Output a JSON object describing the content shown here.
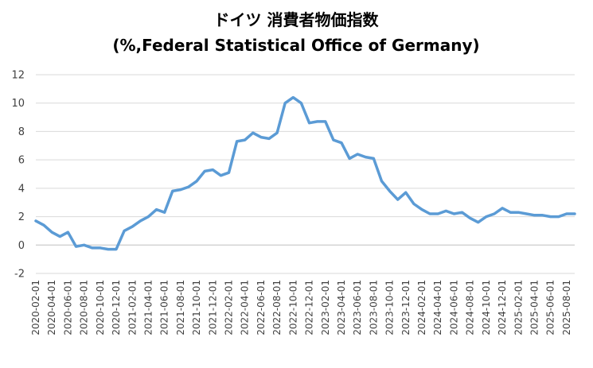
{
  "chart_data": {
    "type": "line",
    "title": "ドイツ 消費者物価指数",
    "subtitle": "(%,Federal Statistical Office of Germany)",
    "xlabel": "",
    "ylabel": "",
    "ylim": [
      -2,
      12
    ],
    "yticks": [
      -2,
      0,
      2,
      4,
      6,
      8,
      10,
      12
    ],
    "grid": "horizontal",
    "legend": "none",
    "color": "#5b9bd5",
    "x": [
      "2020-02-01",
      "2020-03-01",
      "2020-04-01",
      "2020-05-01",
      "2020-06-01",
      "2020-07-01",
      "2020-08-01",
      "2020-09-01",
      "2020-10-01",
      "2020-11-01",
      "2020-12-01",
      "2021-01-01",
      "2021-02-01",
      "2021-03-01",
      "2021-04-01",
      "2021-05-01",
      "2021-06-01",
      "2021-07-01",
      "2021-08-01",
      "2021-09-01",
      "2021-10-01",
      "2021-11-01",
      "2021-12-01",
      "2022-01-01",
      "2022-02-01",
      "2022-03-01",
      "2022-04-01",
      "2022-05-01",
      "2022-06-01",
      "2022-07-01",
      "2022-08-01",
      "2022-09-01",
      "2022-10-01",
      "2022-11-01",
      "2022-12-01",
      "2023-01-01",
      "2023-02-01",
      "2023-03-01",
      "2023-04-01",
      "2023-05-01",
      "2023-06-01",
      "2023-07-01",
      "2023-08-01",
      "2023-09-01",
      "2023-10-01",
      "2023-11-01",
      "2023-12-01",
      "2024-01-01",
      "2024-02-01",
      "2024-03-01",
      "2024-04-01",
      "2024-05-01",
      "2024-06-01",
      "2024-07-01",
      "2024-08-01",
      "2024-09-01",
      "2024-10-01",
      "2024-11-01",
      "2024-12-01",
      "2025-01-01",
      "2025-02-01",
      "2025-03-01",
      "2025-04-01",
      "2025-05-01",
      "2025-06-01",
      "2025-07-01",
      "2025-08-01",
      "2025-09-01"
    ],
    "xtick_labels": [
      "2020-02-01",
      "2020-04-01",
      "2020-06-01",
      "2020-08-01",
      "2020-10-01",
      "2020-12-01",
      "2021-02-01",
      "2021-04-01",
      "2021-06-01",
      "2021-08-01",
      "2021-10-01",
      "2021-12-01",
      "2022-02-01",
      "2022-04-01",
      "2022-06-01",
      "2022-08-01",
      "2022-10-01",
      "2022-12-01",
      "2023-02-01",
      "2023-04-01",
      "2023-06-01",
      "2023-08-01",
      "2023-10-01",
      "2023-12-01",
      "2024-02-01",
      "2024-04-01",
      "2024-06-01",
      "2024-08-01",
      "2024-10-01",
      "2024-12-01",
      "2025-02-01",
      "2025-04-01",
      "2025-06-01",
      "2025-08-01"
    ],
    "series": [
      {
        "values": [
          1.7,
          1.4,
          0.9,
          0.6,
          0.9,
          -0.1,
          0.0,
          -0.2,
          -0.2,
          -0.3,
          -0.3,
          1.0,
          1.3,
          1.7,
          2.0,
          2.5,
          2.3,
          3.8,
          3.9,
          4.1,
          4.5,
          5.2,
          5.3,
          4.9,
          5.1,
          7.3,
          7.4,
          7.9,
          7.6,
          7.5,
          7.9,
          10.0,
          10.4,
          10.0,
          8.6,
          8.7,
          8.7,
          7.4,
          7.2,
          6.1,
          6.4,
          6.2,
          6.1,
          4.5,
          3.8,
          3.2,
          3.7,
          2.9,
          2.5,
          2.2,
          2.2,
          2.4,
          2.2,
          2.3,
          1.9,
          1.6,
          2.0,
          2.2,
          2.6,
          2.3,
          2.3,
          2.2,
          2.1,
          2.1,
          2.0,
          2.0,
          2.2,
          2.2
        ]
      }
    ]
  }
}
